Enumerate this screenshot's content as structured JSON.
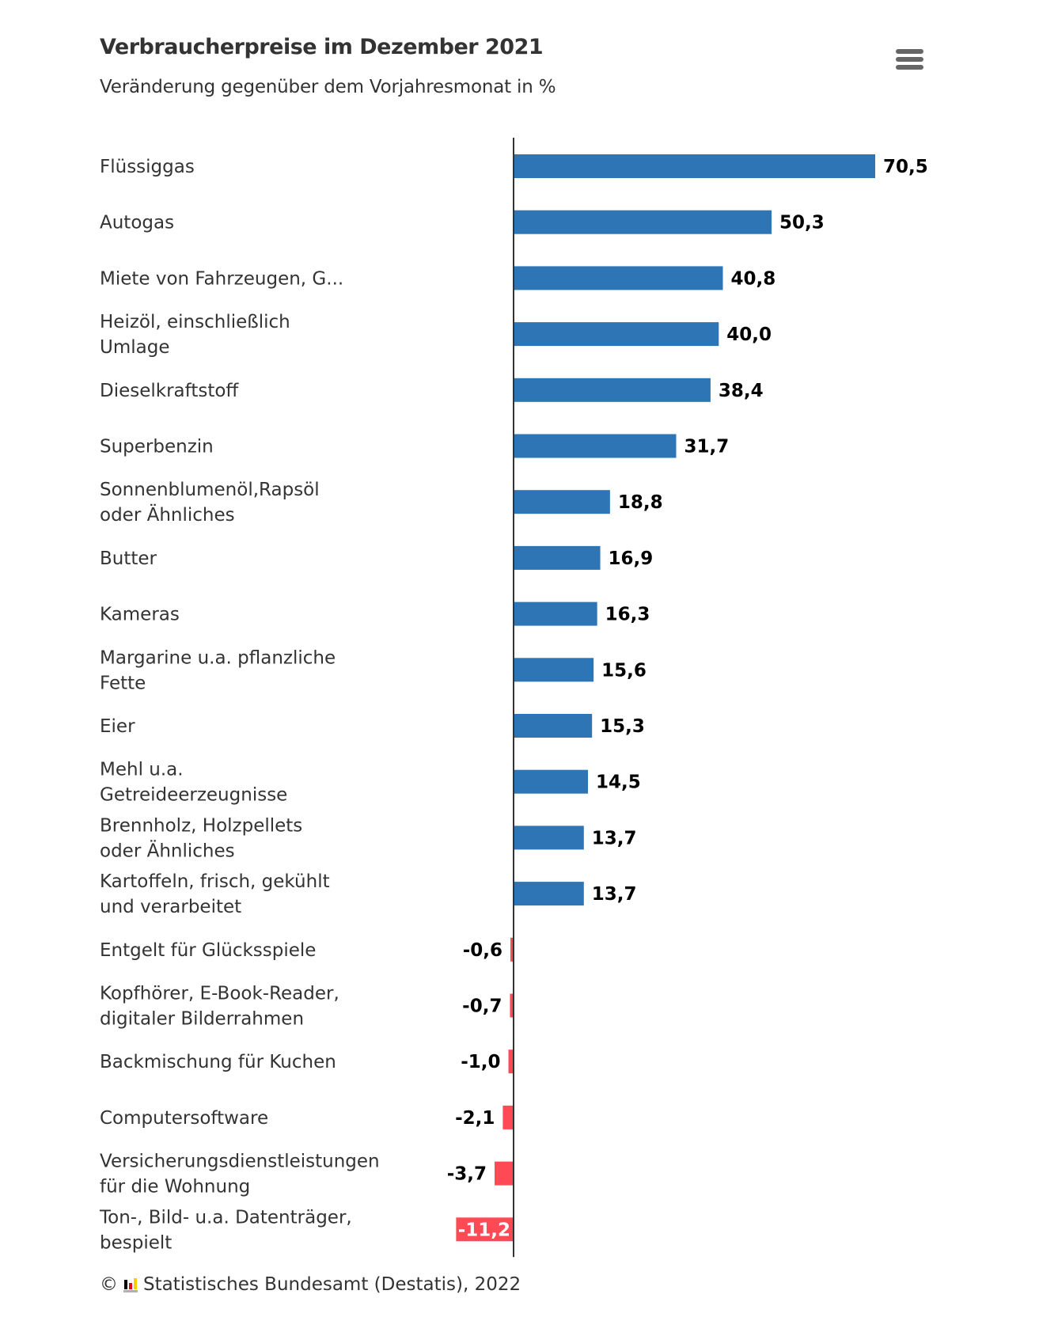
{
  "header": {
    "title": "Verbraucherpreise im Dezember 2021",
    "subtitle": "Veränderung gegenüber dem Vorjahresmonat in %",
    "menu_icon": "hamburger-menu-icon"
  },
  "footer": {
    "copyright": "©",
    "logo_icon": "destatis-logo-icon",
    "source": "Statistisches Bundesamt (Destatis), 2022"
  },
  "colors": {
    "positive": "#2e75b6",
    "negative": "#ff4a55",
    "axis": "#333333"
  },
  "chart_data": {
    "type": "bar",
    "orientation": "horizontal",
    "title": "Verbraucherpreise im Dezember 2021",
    "subtitle": "Veränderung gegenüber dem Vorjahresmonat in %",
    "xlabel": "",
    "ylabel": "",
    "grid": false,
    "legend": "none",
    "categories": [
      [
        "Flüssiggas"
      ],
      [
        "Autogas"
      ],
      [
        "Miete von Fahrzeugen, G..."
      ],
      [
        "Heizöl, einschließlich",
        "Umlage"
      ],
      [
        "Dieselkraftstoff"
      ],
      [
        "Superbenzin"
      ],
      [
        "Sonnenblumenöl,Rapsöl",
        "oder Ähnliches"
      ],
      [
        "Butter"
      ],
      [
        "Kameras"
      ],
      [
        "Margarine u.a. pflanzliche",
        "Fette"
      ],
      [
        "Eier"
      ],
      [
        "Mehl u.a.",
        "Getreideerzeugnisse"
      ],
      [
        "Brennholz, Holzpellets",
        "oder Ähnliches"
      ],
      [
        "Kartoffeln, frisch, gekühlt",
        "und verarbeitet"
      ],
      [
        "Entgelt für Glücksspiele"
      ],
      [
        "Kopfhörer, E-Book-Reader,",
        "digitaler Bilderrahmen"
      ],
      [
        "Backmischung für Kuchen"
      ],
      [
        "Computersoftware"
      ],
      [
        "Versicherungsdienstleistungen",
        "für die Wohnung"
      ],
      [
        "Ton-, Bild- u.a. Datenträger,",
        "bespielt"
      ]
    ],
    "values": [
      70.5,
      50.3,
      40.8,
      40.0,
      38.4,
      31.7,
      18.8,
      16.9,
      16.3,
      15.6,
      15.3,
      14.5,
      13.7,
      13.7,
      -0.6,
      -0.7,
      -1.0,
      -2.1,
      -3.7,
      -11.2
    ],
    "value_labels": [
      "70,5",
      "50,3",
      "40,8",
      "40,0",
      "38,4",
      "31,7",
      "18,8",
      "16,9",
      "16,3",
      "15,6",
      "15,3",
      "14,5",
      "13,7",
      "13,7",
      "-0,6",
      "-0,7",
      "-1,0",
      "-2,1",
      "-3,7",
      "-11,2"
    ],
    "xlim": [
      -11.2,
      70.5
    ]
  }
}
